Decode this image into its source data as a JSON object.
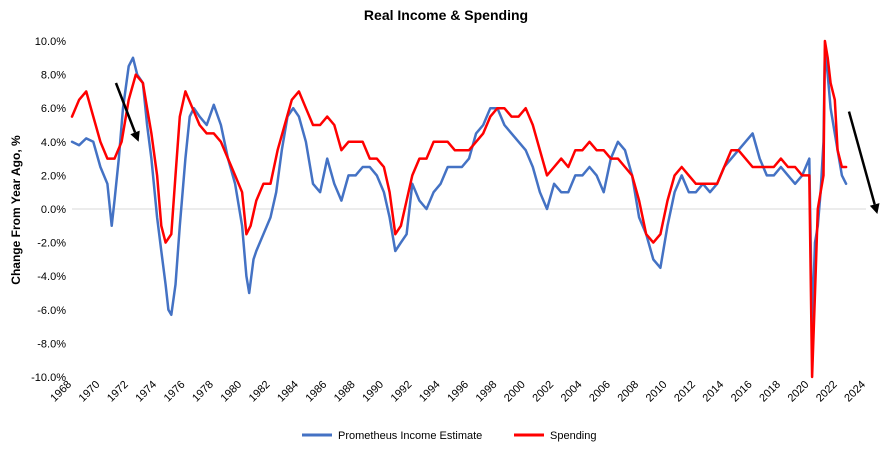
{
  "chart_data": {
    "type": "line",
    "title": "Real Income & Spending",
    "xlabel": "",
    "ylabel": "Change From Year Ago, %",
    "xlim": [
      1968,
      2024
    ],
    "ylim": [
      -10,
      10
    ],
    "x_ticks": [
      "1968",
      "1970",
      "1972",
      "1974",
      "1976",
      "1978",
      "1980",
      "1982",
      "1984",
      "1986",
      "1988",
      "1990",
      "1992",
      "1994",
      "1996",
      "1998",
      "2000",
      "2002",
      "2004",
      "2006",
      "2008",
      "2010",
      "2012",
      "2014",
      "2016",
      "2018",
      "2020",
      "2022",
      "2024"
    ],
    "y_ticks": [
      "10.0%",
      "8.0%",
      "6.0%",
      "4.0%",
      "2.0%",
      "0.0%",
      "-2.0%",
      "-4.0%",
      "-6.0%",
      "-8.0%",
      "-10.0%"
    ],
    "grid": "zero-line only",
    "legend_position": "bottom",
    "series": [
      {
        "name": "Prometheus Income Estimate",
        "color": "#4472C4",
        "x": [
          1968.0,
          1968.5,
          1969.0,
          1969.5,
          1970.0,
          1970.5,
          1970.8,
          1971.0,
          1971.3,
          1971.6,
          1972.0,
          1972.3,
          1972.6,
          1973.0,
          1973.3,
          1973.6,
          1974.0,
          1974.3,
          1974.6,
          1974.8,
          1975.0,
          1975.3,
          1975.6,
          1976.0,
          1976.3,
          1976.6,
          1977.0,
          1977.5,
          1978.0,
          1978.5,
          1979.0,
          1979.5,
          1980.0,
          1980.3,
          1980.5,
          1980.8,
          1981.0,
          1981.5,
          1982.0,
          1982.4,
          1982.8,
          1983.2,
          1983.6,
          1984.0,
          1984.5,
          1985.0,
          1985.5,
          1986.0,
          1986.5,
          1987.0,
          1987.5,
          1988.0,
          1988.5,
          1989.0,
          1989.5,
          1990.0,
          1990.4,
          1990.8,
          1991.2,
          1991.6,
          1992.0,
          1992.5,
          1993.0,
          1993.5,
          1994.0,
          1994.5,
          1995.0,
          1995.5,
          1996.0,
          1996.5,
          1997.0,
          1997.5,
          1998.0,
          1998.5,
          1999.0,
          1999.5,
          2000.0,
          2000.5,
          2001.0,
          2001.5,
          2002.0,
          2002.5,
          2003.0,
          2003.5,
          2004.0,
          2004.5,
          2005.0,
          2005.5,
          2006.0,
          2006.5,
          2007.0,
          2007.5,
          2008.0,
          2008.5,
          2009.0,
          2009.5,
          2010.0,
          2010.5,
          2011.0,
          2011.5,
          2012.0,
          2012.5,
          2013.0,
          2013.5,
          2014.0,
          2014.5,
          2015.0,
          2015.5,
          2016.0,
          2016.5,
          2017.0,
          2017.5,
          2018.0,
          2018.5,
          2019.0,
          2019.5,
          2020.0,
          2020.2,
          2020.4,
          2020.6,
          2020.8,
          2021.0,
          2021.1,
          2021.3,
          2021.5,
          2021.8,
          2022.0,
          2022.3,
          2022.6
        ],
        "y": [
          4.0,
          3.8,
          4.2,
          4.0,
          2.5,
          1.5,
          -1.0,
          0.5,
          3.0,
          6.0,
          8.5,
          9.0,
          8.0,
          7.5,
          5.0,
          3.0,
          -0.5,
          -2.5,
          -4.5,
          -6.0,
          -6.3,
          -4.5,
          -1.0,
          3.0,
          5.5,
          6.0,
          5.5,
          5.0,
          6.2,
          5.0,
          3.0,
          1.5,
          -1.0,
          -4.0,
          -5.0,
          -3.0,
          -2.5,
          -1.5,
          -0.5,
          1.0,
          3.5,
          5.5,
          6.0,
          5.5,
          4.0,
          1.5,
          1.0,
          3.0,
          1.5,
          0.5,
          2.0,
          2.0,
          2.5,
          2.5,
          2.0,
          1.0,
          -0.5,
          -2.5,
          -2.0,
          -1.5,
          1.5,
          0.5,
          0.0,
          1.0,
          1.5,
          2.5,
          2.5,
          2.5,
          3.0,
          4.5,
          5.0,
          6.0,
          6.0,
          5.0,
          4.5,
          4.0,
          3.5,
          2.5,
          1.0,
          0.0,
          1.5,
          1.0,
          1.0,
          2.0,
          2.0,
          2.5,
          2.0,
          1.0,
          3.0,
          4.0,
          3.5,
          2.0,
          -0.5,
          -1.5,
          -3.0,
          -3.5,
          -1.0,
          1.0,
          2.0,
          1.0,
          1.0,
          1.5,
          1.0,
          1.5,
          2.5,
          3.0,
          3.5,
          4.0,
          4.5,
          3.0,
          2.0,
          2.0,
          2.5,
          2.0,
          1.5,
          2.0,
          3.0,
          -7.0,
          -2.0,
          -1.0,
          1.0,
          4.0,
          9.5,
          8.0,
          6.0,
          4.5,
          3.5,
          2.0,
          1.5
        ]
      },
      {
        "name": "Spending",
        "color": "#FF0000",
        "x": [
          1968.0,
          1968.5,
          1969.0,
          1969.5,
          1970.0,
          1970.5,
          1971.0,
          1971.5,
          1972.0,
          1972.5,
          1973.0,
          1973.3,
          1973.6,
          1974.0,
          1974.3,
          1974.6,
          1975.0,
          1975.3,
          1975.6,
          1976.0,
          1976.5,
          1977.0,
          1977.5,
          1978.0,
          1978.5,
          1979.0,
          1979.5,
          1980.0,
          1980.3,
          1980.6,
          1981.0,
          1981.5,
          1982.0,
          1982.5,
          1983.0,
          1983.5,
          1984.0,
          1984.5,
          1985.0,
          1985.5,
          1986.0,
          1986.5,
          1987.0,
          1987.5,
          1988.0,
          1988.5,
          1989.0,
          1989.5,
          1990.0,
          1990.4,
          1990.8,
          1991.2,
          1991.6,
          1992.0,
          1992.5,
          1993.0,
          1993.5,
          1994.0,
          1994.5,
          1995.0,
          1995.5,
          1996.0,
          1996.5,
          1997.0,
          1997.5,
          1998.0,
          1998.5,
          1999.0,
          1999.5,
          2000.0,
          2000.5,
          2001.0,
          2001.5,
          2002.0,
          2002.5,
          2003.0,
          2003.5,
          2004.0,
          2004.5,
          2005.0,
          2005.5,
          2006.0,
          2006.5,
          2007.0,
          2007.5,
          2008.0,
          2008.5,
          2009.0,
          2009.5,
          2010.0,
          2010.5,
          2011.0,
          2011.5,
          2012.0,
          2012.5,
          2013.0,
          2013.5,
          2014.0,
          2014.5,
          2015.0,
          2015.5,
          2016.0,
          2016.5,
          2017.0,
          2017.5,
          2018.0,
          2018.5,
          2019.0,
          2019.5,
          2020.0,
          2020.2,
          2020.4,
          2020.6,
          2020.8,
          2021.0,
          2021.1,
          2021.3,
          2021.5,
          2021.8,
          2022.0,
          2022.3,
          2022.6
        ],
        "y": [
          5.5,
          6.5,
          7.0,
          5.5,
          4.0,
          3.0,
          3.0,
          4.0,
          6.5,
          8.0,
          7.5,
          6.0,
          4.5,
          2.0,
          -1.0,
          -2.0,
          -1.5,
          2.0,
          5.5,
          7.0,
          6.0,
          5.0,
          4.5,
          4.5,
          4.0,
          3.0,
          2.0,
          1.0,
          -1.5,
          -1.0,
          0.5,
          1.5,
          1.5,
          3.5,
          5.0,
          6.5,
          7.0,
          6.0,
          5.0,
          5.0,
          5.5,
          5.0,
          3.5,
          4.0,
          4.0,
          4.0,
          3.0,
          3.0,
          2.5,
          1.0,
          -1.5,
          -1.0,
          0.5,
          2.0,
          3.0,
          3.0,
          4.0,
          4.0,
          4.0,
          3.5,
          3.5,
          3.5,
          4.0,
          4.5,
          5.5,
          6.0,
          6.0,
          5.5,
          5.5,
          6.0,
          5.0,
          3.5,
          2.0,
          2.5,
          3.0,
          2.5,
          3.5,
          3.5,
          4.0,
          3.5,
          3.5,
          3.0,
          3.0,
          2.5,
          2.0,
          0.5,
          -1.5,
          -2.0,
          -1.5,
          0.5,
          2.0,
          2.5,
          2.0,
          1.5,
          1.5,
          1.5,
          1.5,
          2.5,
          3.5,
          3.5,
          3.0,
          2.5,
          2.5,
          2.5,
          2.5,
          3.0,
          2.5,
          2.5,
          2.0,
          2.0,
          -10.0,
          -5.0,
          0.0,
          1.0,
          2.0,
          10.0,
          9.0,
          7.5,
          6.5,
          3.5,
          2.5,
          2.5
        ]
      }
    ],
    "annotations": [
      {
        "type": "arrow",
        "from": [
          1971.1,
          7.5
        ],
        "to": [
          1972.7,
          4.0
        ],
        "color": "#000000"
      },
      {
        "type": "arrow",
        "from": [
          2022.8,
          5.8
        ],
        "to": [
          2024.8,
          -0.3
        ],
        "color": "#000000"
      }
    ]
  }
}
